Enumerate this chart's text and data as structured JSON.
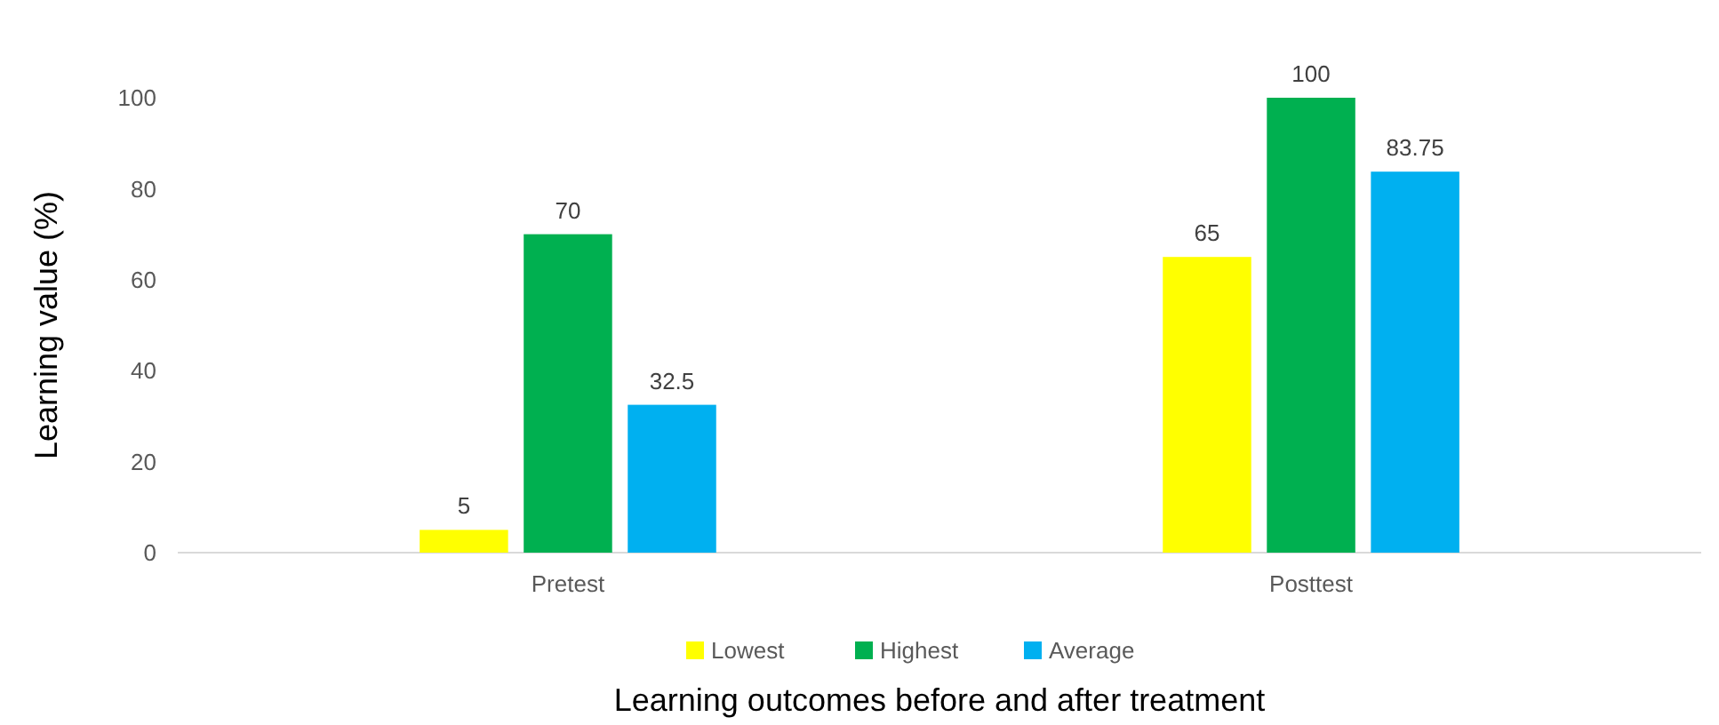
{
  "chart_data": {
    "type": "bar",
    "xlabel": "Learning outcomes before and after treatment",
    "ylabel": "Learning value (%)",
    "categories": [
      "Pretest",
      "Posttest"
    ],
    "series": [
      {
        "name": "Lowest",
        "color": "#ffff00",
        "values": [
          5,
          65
        ]
      },
      {
        "name": "Highest",
        "color": "#00b050",
        "values": [
          70,
          100
        ]
      },
      {
        "name": "Average",
        "color": "#00b0f0",
        "values": [
          32.5,
          83.75
        ]
      }
    ],
    "ylim": [
      0,
      100
    ],
    "yticks": [
      0,
      20,
      40,
      60,
      80,
      100
    ],
    "grid": false,
    "legend": "bottom",
    "data_labels": true
  }
}
